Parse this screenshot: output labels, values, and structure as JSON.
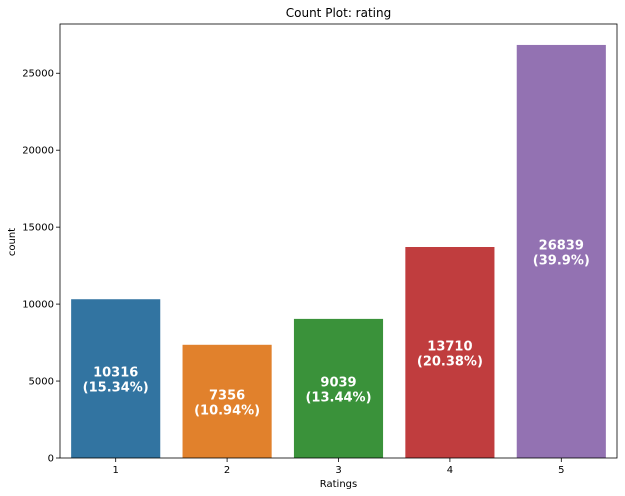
{
  "chart_data": {
    "type": "bar",
    "title": "Count Plot: rating",
    "xlabel": "Ratings",
    "ylabel": "count",
    "categories": [
      "1",
      "2",
      "3",
      "4",
      "5"
    ],
    "values": [
      10316,
      7356,
      9039,
      13710,
      26839
    ],
    "data_labels": [
      [
        "10316",
        "(15.34%)"
      ],
      [
        "7356",
        "(10.94%)"
      ],
      [
        "9039",
        "(13.44%)"
      ],
      [
        "13710",
        "(20.38%)"
      ],
      [
        "26839",
        "(39.9%)"
      ]
    ],
    "colors": [
      "#3274a1",
      "#e1812c",
      "#3a923a",
      "#c03d3e",
      "#9372b2"
    ],
    "ylim": [
      0,
      28200
    ],
    "yticks": [
      0,
      5000,
      10000,
      15000,
      20000,
      25000
    ],
    "grid": false
  }
}
